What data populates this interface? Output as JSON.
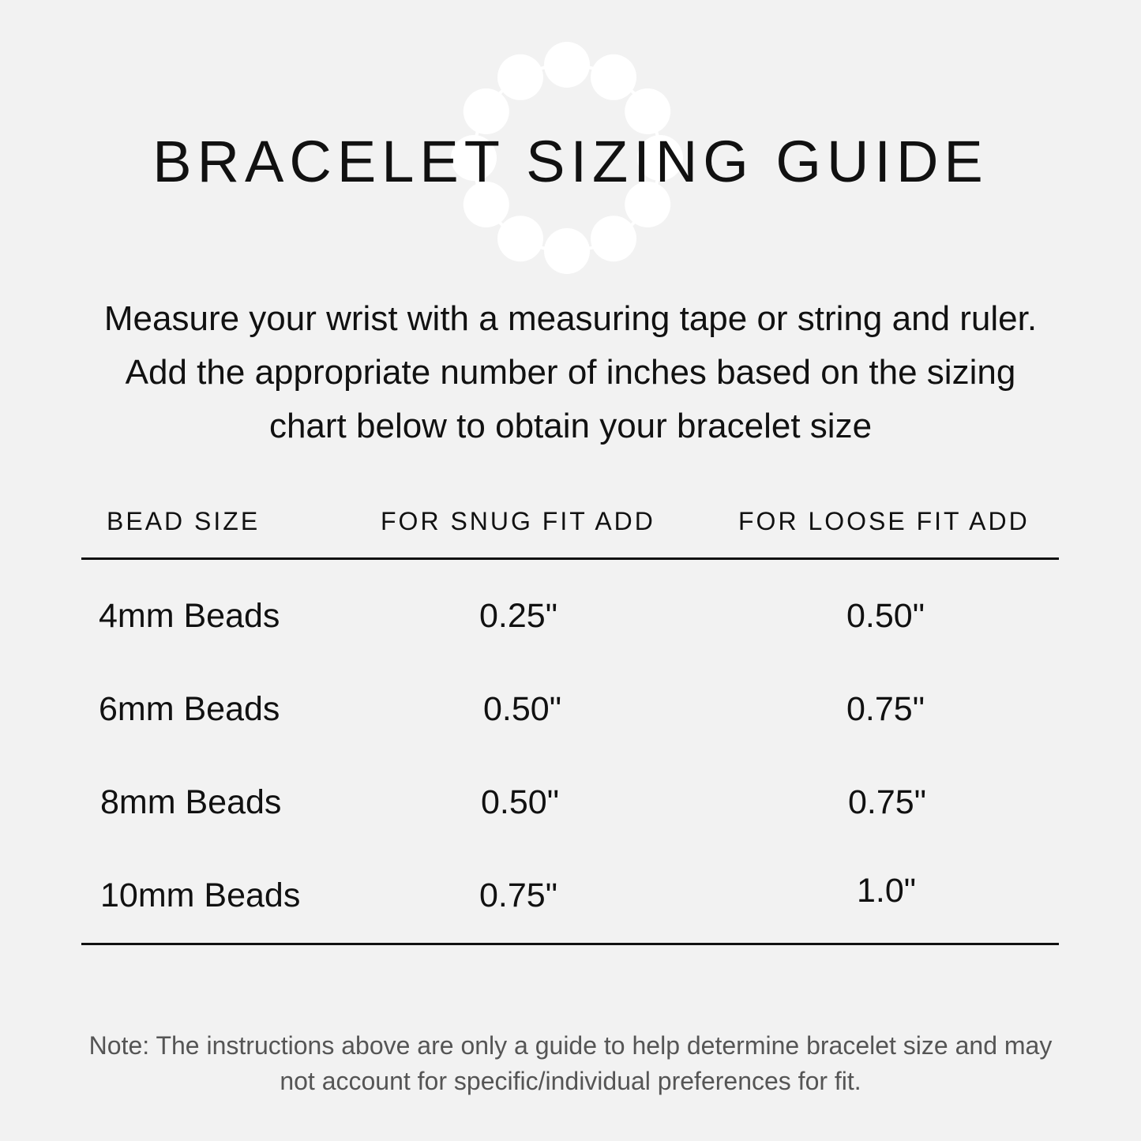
{
  "title": "BRACELET SIZING GUIDE",
  "decoration": {
    "icon": "bead-bracelet-icon",
    "color": "#ffffff",
    "bead_count": 12
  },
  "intro": "Measure your wrist with a measuring tape or string and ruler.  Add the appropriate number of inches based on the sizing chart below to obtain your bracelet size",
  "table": {
    "headers": [
      "BEAD SIZE",
      "FOR SNUG FIT ADD",
      "FOR LOOSE FIT ADD"
    ],
    "rows": [
      {
        "bead": "4mm Beads",
        "snug": "0.25\"",
        "loose": "0.50\""
      },
      {
        "bead": "6mm Beads",
        "snug": "0.50\"",
        "loose": "0.75\""
      },
      {
        "bead": "8mm Beads",
        "snug": "0.50\"",
        "loose": "0.75\""
      },
      {
        "bead": "10mm Beads",
        "snug": "0.75\"",
        "loose": "1.0\""
      }
    ]
  },
  "note": "Note: The instructions above are only a guide to help determine bracelet size and may not account for specific/individual preferences for fit."
}
